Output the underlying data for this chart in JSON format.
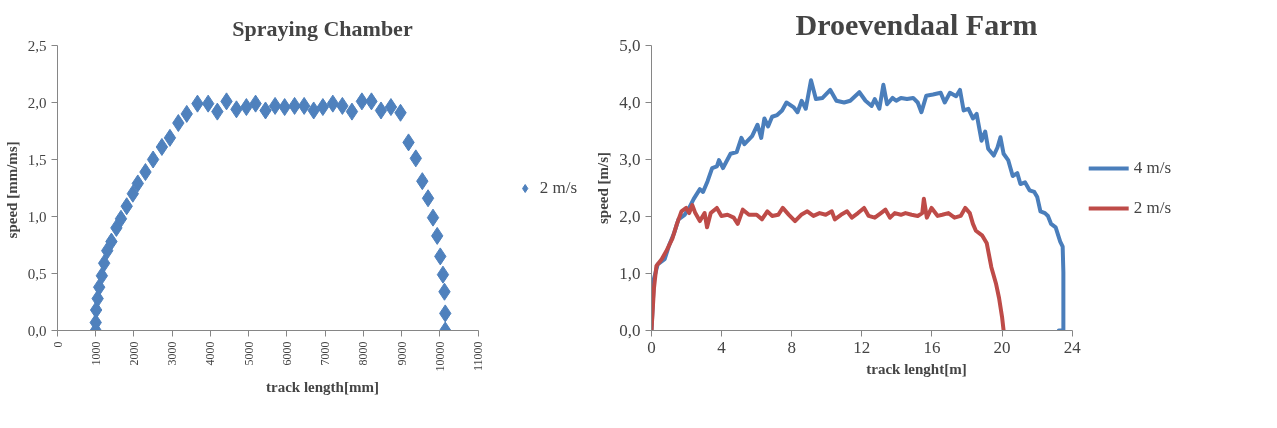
{
  "chart_data": [
    {
      "type": "scatter",
      "title": "Spraying Chamber",
      "xlabel": "track length[mm]",
      "ylabel": "speed  [mm/ms]",
      "marker": "diamond",
      "legend": "right",
      "grid": false,
      "xlim": [
        0,
        11000
      ],
      "xticks": [
        0,
        1000,
        2000,
        3000,
        4000,
        5000,
        6000,
        7000,
        8000,
        9000,
        10000,
        11000
      ],
      "ylim": [
        0,
        2.5
      ],
      "yticks": [
        {
          "value": 0,
          "label": "0,0"
        },
        {
          "value": 0.5,
          "label": "0,5"
        },
        {
          "value": 1,
          "label": "1,0"
        },
        {
          "value": 1.5,
          "label": "1,5"
        },
        {
          "value": 2,
          "label": "2,0"
        },
        {
          "value": 2.5,
          "label": "2,5"
        }
      ],
      "series": [
        {
          "name": "2 m/s",
          "color": "#4f81bd",
          "x": [
            1000,
            1000,
            1010,
            1050,
            1090,
            1160,
            1220,
            1300,
            1410,
            1540,
            1660,
            1810,
            1970,
            2100,
            2300,
            2500,
            2730,
            2940,
            3160,
            3380,
            3660,
            3940,
            4180,
            4420,
            4680,
            4940,
            5180,
            5440,
            5690,
            5940,
            6200,
            6450,
            6700,
            6940,
            7200,
            7450,
            7700,
            7960,
            8210,
            8460,
            8720,
            8970,
            9180,
            9370,
            9540,
            9690,
            9820,
            9930,
            10010,
            10080,
            10120,
            10140,
            10140
          ],
          "values": [
            0,
            0.07,
            0.18,
            0.28,
            0.38,
            0.48,
            0.59,
            0.7,
            0.78,
            0.9,
            0.98,
            1.09,
            1.2,
            1.29,
            1.39,
            1.5,
            1.61,
            1.69,
            1.82,
            1.9,
            1.99,
            1.99,
            1.92,
            2.01,
            1.94,
            1.96,
            1.99,
            1.93,
            1.97,
            1.96,
            1.97,
            1.97,
            1.93,
            1.96,
            1.99,
            1.97,
            1.92,
            2.01,
            2.01,
            1.93,
            1.96,
            1.91,
            1.65,
            1.51,
            1.31,
            1.16,
            0.99,
            0.83,
            0.65,
            0.49,
            0.34,
            0.15,
            0
          ]
        }
      ]
    },
    {
      "type": "line",
      "title": "Droevendaal Farm",
      "xlabel": "track lenght[m]",
      "ylabel": "speed [m/s]",
      "legend": "right",
      "grid": false,
      "line_style": "solid",
      "xlim": [
        0,
        24
      ],
      "xticks": [
        0,
        4,
        8,
        12,
        16,
        20,
        24
      ],
      "ylim": [
        0,
        5
      ],
      "yticks": [
        {
          "value": 0,
          "label": "0,0"
        },
        {
          "value": 1,
          "label": "1,0"
        },
        {
          "value": 2,
          "label": "2,0"
        },
        {
          "value": 3,
          "label": "3,0"
        },
        {
          "value": 4,
          "label": "4,0"
        },
        {
          "value": 5,
          "label": "5,0"
        }
      ],
      "series": [
        {
          "name": "4 m/s",
          "color": "#4a7ebb",
          "x": [
            0,
            0.14,
            0.35,
            0.75,
            1.01,
            1.28,
            1.54,
            1.89,
            2.15,
            2.41,
            2.76,
            2.94,
            3.2,
            3.46,
            3.73,
            3.85,
            4.08,
            4.51,
            4.86,
            5.13,
            5.3,
            5.74,
            6.05,
            6.26,
            6.44,
            6.65,
            6.88,
            7.17,
            7.45,
            7.7,
            8.1,
            8.33,
            8.57,
            8.8,
            9.1,
            9.38,
            9.76,
            10.2,
            10.55,
            10.99,
            11.34,
            11.86,
            12.21,
            12.56,
            12.74,
            13.0,
            13.23,
            13.44,
            13.75,
            13.96,
            14.23,
            14.58,
            14.93,
            15.19,
            15.4,
            15.68,
            16.06,
            16.5,
            16.73,
            17.03,
            17.38,
            17.6,
            17.81,
            18.08,
            18.34,
            18.55,
            18.83,
            19.04,
            19.21,
            19.53,
            19.74,
            19.91,
            20.09,
            20.35,
            20.61,
            20.87,
            21.05,
            21.31,
            21.57,
            21.84,
            22.01,
            22.19,
            22.45,
            22.62,
            22.8,
            23.06,
            23.32,
            23.46,
            23.5,
            23.5,
            23.24
          ],
          "values": [
            0,
            0.91,
            1.16,
            1.25,
            1.5,
            1.7,
            1.95,
            2.03,
            2.15,
            2.31,
            2.48,
            2.43,
            2.62,
            2.85,
            2.88,
            2.99,
            2.85,
            3.1,
            3.13,
            3.38,
            3.27,
            3.41,
            3.61,
            3.38,
            3.72,
            3.58,
            3.75,
            3.78,
            3.86,
            4.0,
            3.92,
            3.83,
            4.03,
            3.89,
            4.39,
            4.06,
            4.08,
            4.22,
            4.03,
            4.0,
            4.03,
            4.18,
            4.03,
            3.94,
            4.06,
            3.89,
            4.31,
            3.97,
            4.08,
            4.03,
            4.08,
            4.06,
            4.08,
            4.0,
            3.83,
            4.12,
            4.14,
            4.17,
            4.0,
            4.17,
            4.11,
            4.22,
            3.86,
            3.89,
            3.72,
            3.8,
            3.33,
            3.49,
            3.19,
            3.07,
            3.21,
            3.39,
            3.1,
            2.99,
            2.71,
            2.76,
            2.57,
            2.6,
            2.46,
            2.43,
            2.34,
            2.09,
            2.06,
            2.01,
            1.87,
            1.81,
            1.56,
            1.47,
            1.02,
            0,
            0
          ]
        },
        {
          "name": "2 m/s",
          "color": "#be4b48",
          "x": [
            0,
            0.14,
            0.28,
            0.58,
            0.84,
            1.19,
            1.45,
            1.71,
            1.98,
            2.15,
            2.33,
            2.5,
            2.76,
            3.03,
            3.17,
            3.38,
            3.73,
            3.99,
            4.34,
            4.69,
            4.92,
            5.21,
            5.56,
            6.0,
            6.3,
            6.61,
            6.88,
            7.23,
            7.49,
            7.84,
            8.19,
            8.54,
            8.89,
            9.24,
            9.59,
            9.94,
            10.29,
            10.46,
            10.81,
            11.16,
            11.43,
            11.78,
            12.13,
            12.39,
            12.74,
            13.09,
            13.35,
            13.61,
            13.88,
            14.23,
            14.49,
            14.84,
            15.19,
            15.45,
            15.54,
            15.71,
            15.98,
            16.33,
            16.59,
            16.94,
            17.29,
            17.64,
            17.9,
            18.16,
            18.34,
            18.51,
            18.86,
            19.13,
            19.39,
            19.65,
            19.83,
            20.0,
            20.09
          ],
          "values": [
            0,
            0.74,
            1.13,
            1.25,
            1.39,
            1.61,
            1.87,
            2.09,
            2.15,
            2.06,
            2.2,
            2.06,
            1.92,
            2.06,
            1.81,
            2.06,
            2.15,
            2.01,
            2.03,
            1.98,
            1.87,
            2.12,
            2.03,
            2.03,
            1.95,
            2.09,
            2.01,
            2.03,
            2.15,
            2.03,
            1.92,
            2.03,
            2.09,
            2.01,
            2.06,
            2.03,
            2.09,
            1.95,
            2.03,
            2.09,
            1.98,
            2.06,
            2.15,
            2.01,
            1.98,
            2.06,
            2.12,
            1.98,
            2.06,
            2.03,
            2.06,
            2.03,
            2.01,
            2.06,
            2.31,
            1.98,
            2.15,
            2.01,
            2.03,
            2.06,
            1.98,
            2.01,
            2.15,
            2.06,
            1.87,
            1.75,
            1.67,
            1.53,
            1.11,
            0.83,
            0.57,
            0.24,
            0
          ]
        }
      ]
    }
  ]
}
